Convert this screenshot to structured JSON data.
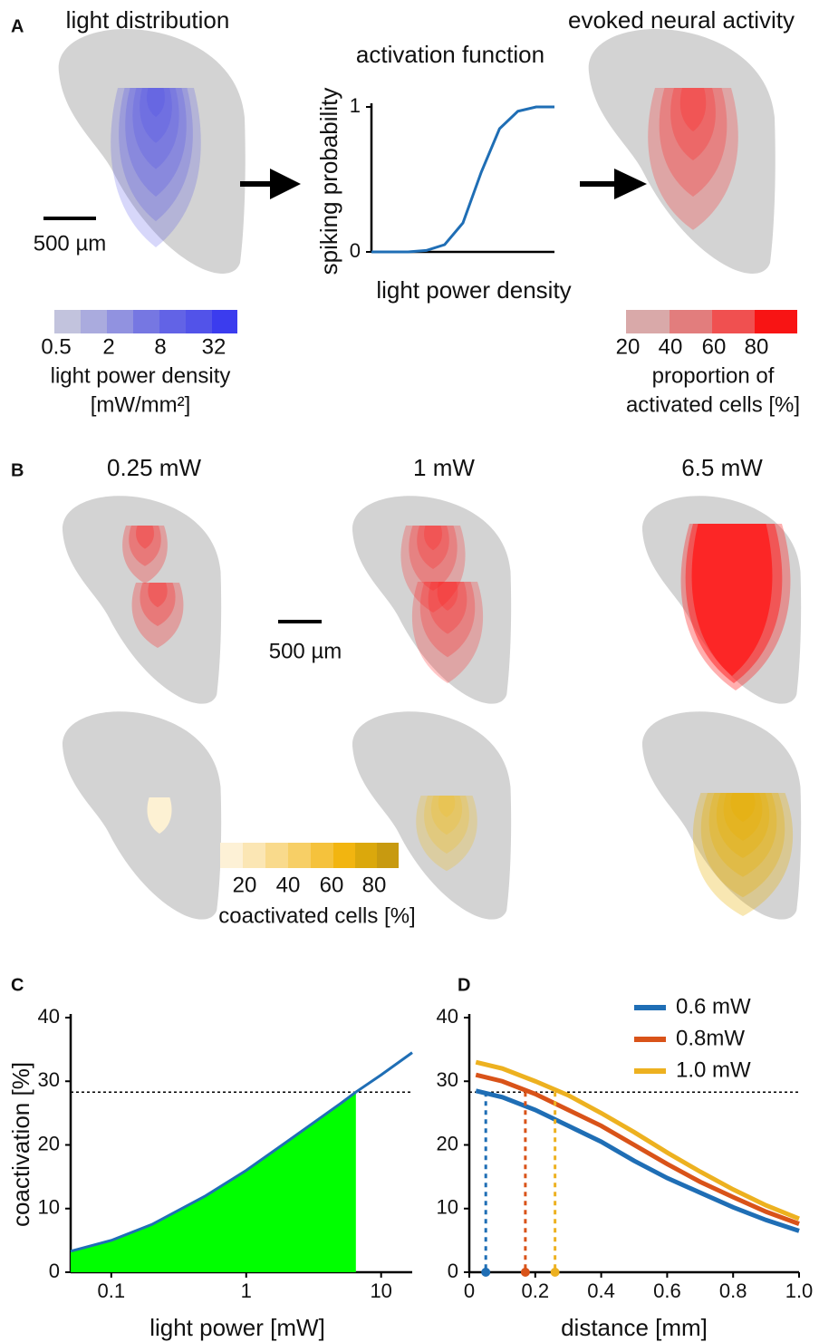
{
  "panel_labels": [
    "A",
    "B",
    "C",
    "D"
  ],
  "panel_a": {
    "left_title": "light distribution",
    "right_title": "evoked neural activity",
    "scale_bar": "500 µm",
    "blue_colorbar": {
      "labels": [
        "0.5",
        "2",
        "8",
        "32"
      ],
      "title": [
        "light power density",
        "[mW/mm²]"
      ]
    },
    "red_colorbar": {
      "labels": [
        "20",
        "40",
        "60",
        "80"
      ],
      "title": [
        "proportion of",
        "activated cells [%]"
      ]
    }
  },
  "panel_b": {
    "powers": [
      "0.25 mW",
      "1 mW",
      "6.5 mW"
    ],
    "scale_bar": "500 µm",
    "yellow_colorbar": {
      "labels": [
        "20",
        "40",
        "60",
        "80"
      ],
      "title": "coactivated cells [%]"
    }
  },
  "chart_data": [
    {
      "type": "line",
      "title": "activation function",
      "y_label": "spiking probability",
      "x_label": "light power density",
      "categories": [
        null,
        null,
        null,
        null,
        null,
        null,
        null,
        null,
        null,
        null,
        null
      ],
      "values": [
        0,
        0,
        0,
        0.01,
        0.05,
        0.2,
        0.55,
        0.85,
        0.97,
        1,
        1
      ],
      "color": "#1f6eb5",
      "ylim": [
        0,
        1
      ],
      "yticks": [
        0,
        1
      ]
    },
    {
      "type": "line",
      "x_label": "light power [mW]",
      "y_label": "coactivation [%]",
      "log_x": true,
      "x": [
        0.05,
        0.1,
        0.2,
        0.5,
        1,
        2,
        5,
        6.5,
        10,
        17
      ],
      "values": [
        3.3,
        5,
        7.5,
        12,
        16,
        20.5,
        26.5,
        28.3,
        31,
        34.5
      ],
      "color": "#1f6eb5",
      "xlim": [
        0.05,
        17
      ],
      "xticks": [
        0.1,
        1,
        10
      ],
      "ylim": [
        0,
        40
      ],
      "yticks": [
        0,
        10,
        20,
        30,
        40
      ],
      "threshold": 28.3,
      "fill_color": "#00ff00",
      "fill_until": 6.5
    },
    {
      "type": "line",
      "x_label": "distance [mm]",
      "legend": "upper right",
      "x": [
        0.02,
        0.1,
        0.2,
        0.3,
        0.4,
        0.5,
        0.6,
        0.7,
        0.8,
        0.9,
        1.0
      ],
      "series": [
        {
          "name": "0.6 mW",
          "color": "#1f6eb5",
          "values": [
            28.5,
            27.5,
            25.5,
            23,
            20.5,
            17.5,
            14.8,
            12.5,
            10.2,
            8.2,
            6.5
          ],
          "crossing": 0.05
        },
        {
          "name": "0.8mW",
          "color": "#d95319",
          "values": [
            31,
            30,
            28,
            25.5,
            23,
            20,
            17,
            14.2,
            11.8,
            9.5,
            7.6
          ],
          "crossing": 0.17
        },
        {
          "name": "1.0 mW",
          "color": "#edb120",
          "values": [
            33,
            32,
            30,
            27.8,
            25,
            22,
            18.8,
            15.8,
            13,
            10.5,
            8.4
          ],
          "crossing": 0.26
        }
      ],
      "xlim": [
        0,
        1
      ],
      "xticks": [
        0,
        0.2,
        0.4,
        0.6,
        0.8,
        {
          "value": 1,
          "label": "1.0"
        }
      ],
      "ylim": [
        0,
        40
      ],
      "yticks": [
        0,
        10,
        20,
        30,
        40
      ],
      "threshold": 28.3
    }
  ]
}
